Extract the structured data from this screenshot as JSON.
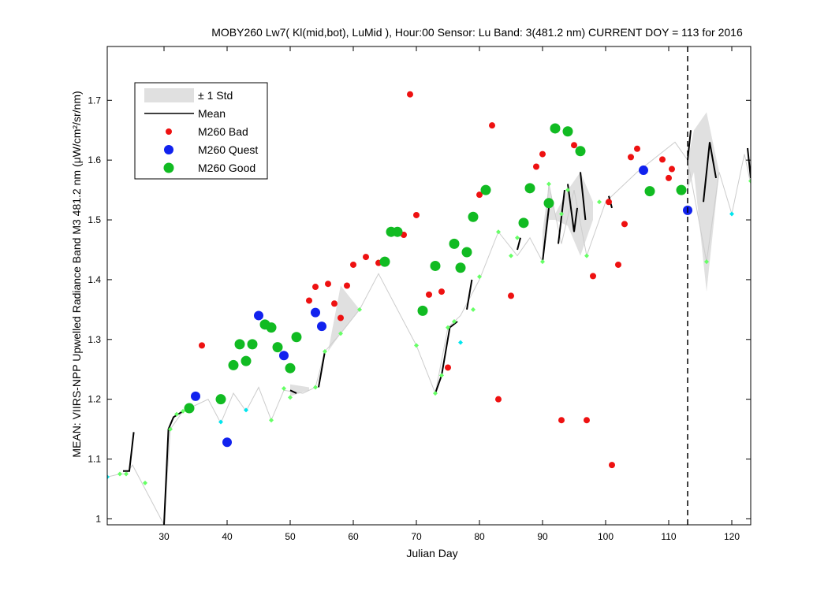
{
  "chart_data": {
    "type": "scatter",
    "title": "MOBY260   Lw7( Kl(mid,bot), LuMid ),   Hour:00 Sensor: Lu Band: 3(481.2 nm)   CURRENT DOY = 113 for 2016",
    "xlabel": "Julian Day",
    "ylabel": "MEAN: VIIRS-NPP Upwelled Radiance Band M3 481.2 nm (μW/cm²/sr/nm)",
    "xlim": [
      21,
      123
    ],
    "ylim": [
      0.99,
      1.79
    ],
    "xticks": [
      "30",
      "40",
      "50",
      "60",
      "70",
      "80",
      "90",
      "100",
      "110",
      "120"
    ],
    "yticks": [
      "1",
      "1.1",
      "1.2",
      "1.3",
      "1.4",
      "1.5",
      "1.6",
      "1.7"
    ],
    "current_doy": 113,
    "grid": false,
    "legend_position": "top-left",
    "legend": {
      "std": "± 1 Std",
      "mean": "Mean",
      "bad": "M260 Bad",
      "quest": "M260 Quest",
      "good": "M260 Good"
    },
    "colors": {
      "bad": "#ee1111",
      "quest": "#1122ee",
      "good": "#11bb22",
      "std_band": "#e0e0e0",
      "mean": "#000000",
      "clim_line": "#cccccc",
      "clim_pts": "#66ff66",
      "clim_cyan": "#00e5ee"
    },
    "std_band": [
      {
        "upper": [
          [
            50,
            1.225
          ],
          [
            53,
            1.22
          ]
        ],
        "lower": [
          [
            50,
            1.205
          ],
          [
            53,
            1.215
          ]
        ]
      },
      {
        "upper": [
          [
            56,
            1.28
          ],
          [
            58,
            1.39
          ],
          [
            61,
            1.35
          ]
        ],
        "lower": [
          [
            56,
            1.28
          ],
          [
            58,
            1.31
          ],
          [
            61,
            1.35
          ]
        ]
      },
      {
        "upper": [
          [
            90,
            1.48
          ],
          [
            91,
            1.56
          ],
          [
            92,
            1.51
          ],
          [
            94,
            1.55
          ],
          [
            96,
            1.58
          ],
          [
            98,
            1.53
          ]
        ],
        "lower": [
          [
            90,
            1.43
          ],
          [
            91,
            1.5
          ],
          [
            92,
            1.5
          ],
          [
            94,
            1.49
          ],
          [
            96,
            1.44
          ],
          [
            98,
            1.5
          ]
        ]
      },
      {
        "upper": [
          [
            113,
            1.6
          ],
          [
            114,
            1.65
          ],
          [
            116,
            1.68
          ],
          [
            118,
            1.58
          ]
        ],
        "lower": [
          [
            113,
            1.55
          ],
          [
            114,
            1.58
          ],
          [
            116,
            1.38
          ],
          [
            118,
            1.58
          ]
        ]
      }
    ],
    "mean_segments": [
      [
        [
          23.5,
          1.08
        ],
        [
          24.5,
          1.08
        ],
        [
          25.2,
          1.145
        ]
      ],
      [
        [
          30.0,
          0.99
        ],
        [
          30.7,
          1.15
        ],
        [
          31.5,
          1.17
        ],
        [
          33,
          1.18
        ]
      ],
      [
        [
          50,
          1.215
        ],
        [
          51,
          1.21
        ]
      ],
      [
        [
          54.5,
          1.22
        ],
        [
          55.5,
          1.28
        ]
      ],
      [
        [
          73,
          1.21
        ],
        [
          74,
          1.24
        ],
        [
          75.3,
          1.32
        ],
        [
          76.5,
          1.33
        ]
      ],
      [
        [
          78,
          1.35
        ],
        [
          78.8,
          1.4
        ]
      ],
      [
        [
          86,
          1.45
        ],
        [
          86.5,
          1.47
        ]
      ],
      [
        [
          90,
          1.43
        ],
        [
          91,
          1.52
        ]
      ],
      [
        [
          92.5,
          1.46
        ],
        [
          93.5,
          1.55
        ]
      ],
      [
        [
          94,
          1.56
        ],
        [
          95,
          1.48
        ],
        [
          95.5,
          1.52
        ]
      ],
      [
        [
          96,
          1.58
        ],
        [
          96.8,
          1.5
        ]
      ],
      [
        [
          100.5,
          1.54
        ],
        [
          101,
          1.52
        ]
      ],
      [
        [
          113,
          1.6
        ],
        [
          113.5,
          1.65
        ]
      ],
      [
        [
          115.5,
          1.53
        ],
        [
          116.5,
          1.63
        ],
        [
          117.5,
          1.57
        ]
      ],
      [
        [
          122.5,
          1.62
        ],
        [
          123,
          1.57
        ]
      ]
    ],
    "climatology_line": [
      [
        21,
        1.07
      ],
      [
        23,
        1.075
      ],
      [
        24,
        1.075
      ],
      [
        25,
        1.09
      ],
      [
        26.5,
        1.06
      ],
      [
        28,
        1.03
      ],
      [
        30,
        0.99
      ],
      [
        31,
        1.15
      ],
      [
        33,
        1.18
      ],
      [
        35,
        1.19
      ],
      [
        37,
        1.2
      ],
      [
        39,
        1.16
      ],
      [
        41,
        1.21
      ],
      [
        43,
        1.18
      ],
      [
        45,
        1.22
      ],
      [
        47,
        1.165
      ],
      [
        49,
        1.215
      ],
      [
        52,
        1.21
      ],
      [
        54,
        1.22
      ],
      [
        55.5,
        1.28
      ],
      [
        58,
        1.31
      ],
      [
        61,
        1.35
      ],
      [
        64,
        1.41
      ],
      [
        70,
        1.29
      ],
      [
        73,
        1.21
      ],
      [
        75,
        1.32
      ],
      [
        77,
        1.34
      ],
      [
        80,
        1.4
      ],
      [
        83,
        1.48
      ],
      [
        86,
        1.44
      ],
      [
        88,
        1.47
      ],
      [
        90,
        1.43
      ],
      [
        91,
        1.56
      ],
      [
        93,
        1.46
      ],
      [
        95,
        1.55
      ],
      [
        97,
        1.44
      ],
      [
        100,
        1.53
      ],
      [
        102,
        1.55
      ],
      [
        105,
        1.58
      ],
      [
        111,
        1.63
      ],
      [
        113,
        1.6
      ],
      [
        116,
        1.43
      ],
      [
        118,
        1.58
      ],
      [
        120,
        1.51
      ],
      [
        122,
        1.61
      ],
      [
        123,
        1.56
      ]
    ],
    "climatology_points": [
      [
        23,
        1.075
      ],
      [
        24,
        1.075
      ],
      [
        27,
        1.06
      ],
      [
        31,
        1.15
      ],
      [
        32,
        1.175
      ],
      [
        33,
        1.18
      ],
      [
        39,
        1.2
      ],
      [
        47,
        1.165
      ],
      [
        49,
        1.218
      ],
      [
        50,
        1.203
      ],
      [
        54,
        1.22
      ],
      [
        55.5,
        1.28
      ],
      [
        58,
        1.31
      ],
      [
        61,
        1.35
      ],
      [
        64,
        1.43
      ],
      [
        70,
        1.29
      ],
      [
        73,
        1.21
      ],
      [
        74,
        1.24
      ],
      [
        75,
        1.32
      ],
      [
        76,
        1.33
      ],
      [
        79,
        1.35
      ],
      [
        80,
        1.405
      ],
      [
        83,
        1.48
      ],
      [
        85,
        1.44
      ],
      [
        86,
        1.47
      ],
      [
        90,
        1.43
      ],
      [
        91,
        1.56
      ],
      [
        93,
        1.51
      ],
      [
        94,
        1.55
      ],
      [
        97,
        1.44
      ],
      [
        99,
        1.53
      ],
      [
        116,
        1.43
      ],
      [
        123,
        1.565
      ]
    ],
    "climatology_cyan": [
      [
        21,
        1.07
      ],
      [
        39,
        1.162
      ],
      [
        43,
        1.182
      ],
      [
        77,
        1.295
      ],
      [
        120,
        1.51
      ]
    ],
    "bad": [
      [
        36,
        1.29
      ],
      [
        53,
        1.365
      ],
      [
        54,
        1.388
      ],
      [
        56,
        1.393
      ],
      [
        57,
        1.36
      ],
      [
        58,
        1.336
      ],
      [
        59,
        1.39
      ],
      [
        60,
        1.425
      ],
      [
        62,
        1.438
      ],
      [
        64,
        1.428
      ],
      [
        68,
        1.475
      ],
      [
        69,
        1.71
      ],
      [
        70,
        1.508
      ],
      [
        72,
        1.375
      ],
      [
        74,
        1.38
      ],
      [
        75,
        1.253
      ],
      [
        80,
        1.542
      ],
      [
        82,
        1.658
      ],
      [
        83,
        1.2
      ],
      [
        85,
        1.373
      ],
      [
        89,
        1.589
      ],
      [
        90,
        1.61
      ],
      [
        93,
        1.165
      ],
      [
        95,
        1.625
      ],
      [
        97,
        1.165
      ],
      [
        98,
        1.406
      ],
      [
        100.5,
        1.53
      ],
      [
        101,
        1.09
      ],
      [
        102,
        1.425
      ],
      [
        103,
        1.493
      ],
      [
        104,
        1.605
      ],
      [
        105,
        1.619
      ],
      [
        109,
        1.601
      ],
      [
        110,
        1.57
      ],
      [
        110.5,
        1.585
      ]
    ],
    "quest": [
      [
        35,
        1.205
      ],
      [
        40,
        1.128
      ],
      [
        45,
        1.34
      ],
      [
        49,
        1.273
      ],
      [
        54,
        1.345
      ],
      [
        55,
        1.322
      ],
      [
        106,
        1.583
      ],
      [
        113,
        1.516
      ]
    ],
    "good": [
      [
        34,
        1.185
      ],
      [
        39,
        1.2
      ],
      [
        41,
        1.257
      ],
      [
        42,
        1.292
      ],
      [
        43,
        1.264
      ],
      [
        44,
        1.292
      ],
      [
        46,
        1.325
      ],
      [
        47,
        1.32
      ],
      [
        48,
        1.287
      ],
      [
        50,
        1.252
      ],
      [
        51,
        1.304
      ],
      [
        65,
        1.43
      ],
      [
        66,
        1.48
      ],
      [
        67,
        1.48
      ],
      [
        71,
        1.348
      ],
      [
        73,
        1.423
      ],
      [
        76,
        1.46
      ],
      [
        77,
        1.42
      ],
      [
        78,
        1.446
      ],
      [
        79,
        1.505
      ],
      [
        81,
        1.55
      ],
      [
        87,
        1.495
      ],
      [
        88,
        1.553
      ],
      [
        91,
        1.528
      ],
      [
        92,
        1.653
      ],
      [
        94,
        1.648
      ],
      [
        96,
        1.615
      ],
      [
        107,
        1.548
      ],
      [
        112,
        1.55
      ]
    ]
  }
}
